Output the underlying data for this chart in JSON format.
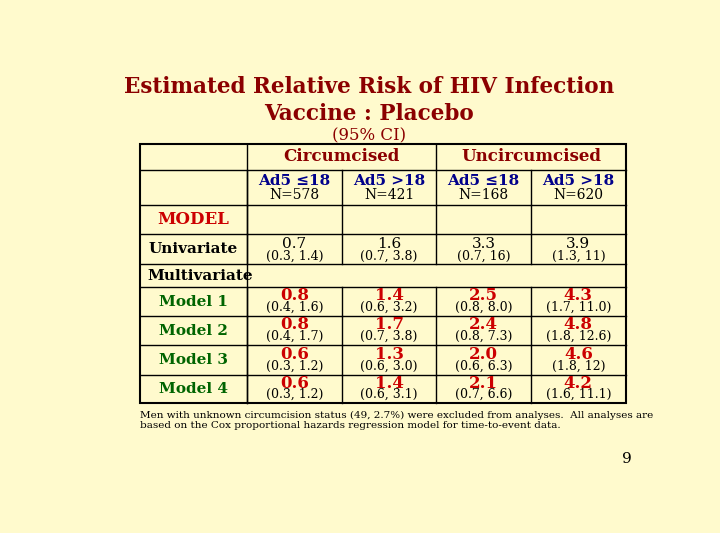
{
  "title_line1": "Estimated Relative Risk of HIV Infection",
  "title_line2": "Vaccine : Placebo",
  "title_line3": "(95% CI)",
  "title_color": "#8B0000",
  "background_color": "#FFFACD",
  "header1_color": "#8B0000",
  "col_headers": [
    "Circumcised",
    "Uncircumcised"
  ],
  "sub_headers": [
    {
      "label": "Ad5 ≤18",
      "sub": "N=578"
    },
    {
      "label": "Ad5 >18",
      "sub": "N=421"
    },
    {
      "label": "Ad5 ≤18",
      "sub": "N=168"
    },
    {
      "label": "Ad5 >18",
      "sub": "N=620"
    }
  ],
  "rows": [
    {
      "label": "MODEL",
      "label_color": "#CC0000",
      "values": [
        "",
        "",
        "",
        ""
      ],
      "ci": [
        "",
        "",
        "",
        ""
      ],
      "type": "model_header"
    },
    {
      "label": "Univariate",
      "label_color": "#000000",
      "values": [
        "0.7",
        "1.6",
        "3.3",
        "3.9"
      ],
      "ci": [
        "(0.3, 1.4)",
        "(0.7, 3.8)",
        "(0.7, 16)",
        "(1.3, 11)"
      ],
      "type": "univariate"
    },
    {
      "label": "Multivariate",
      "label_color": "#000000",
      "values": [
        "",
        "",
        "",
        ""
      ],
      "ci": [
        "",
        "",
        "",
        ""
      ],
      "type": "multivariate_header"
    },
    {
      "label": "Model 1",
      "label_color": "#006400",
      "values": [
        "0.8",
        "1.4",
        "2.5",
        "4.3"
      ],
      "ci": [
        "(0.4, 1.6)",
        "(0.6, 3.2)",
        "(0.8, 8.0)",
        "(1.7, 11.0)"
      ],
      "type": "model"
    },
    {
      "label": "Model 2",
      "label_color": "#006400",
      "values": [
        "0.8",
        "1.7",
        "2.4",
        "4.8"
      ],
      "ci": [
        "(0.4, 1.7)",
        "(0.7, 3.8)",
        "(0.8, 7.3)",
        "(1.8, 12.6)"
      ],
      "type": "model"
    },
    {
      "label": "Model 3",
      "label_color": "#006400",
      "values": [
        "0.6",
        "1.3",
        "2.0",
        "4.6"
      ],
      "ci": [
        "(0.3, 1.2)",
        "(0.6, 3.0)",
        "(0.6, 6.3)",
        "(1.8, 12)"
      ],
      "type": "model"
    },
    {
      "label": "Model 4",
      "label_color": "#006400",
      "values": [
        "0.6",
        "1.4",
        "2.1",
        "4.2"
      ],
      "ci": [
        "(0.3, 1.2)",
        "(0.6, 3.1)",
        "(0.7, 6.6)",
        "(1.6, 11.1)"
      ],
      "type": "model"
    }
  ],
  "footnote": "Men with unknown circumcision status (49, 2.7%) were excluded from analyses.  All analyses are\nbased on the Cox proportional hazards regression model for time-to-event data.",
  "footnote_color": "#000000",
  "page_number": "9"
}
